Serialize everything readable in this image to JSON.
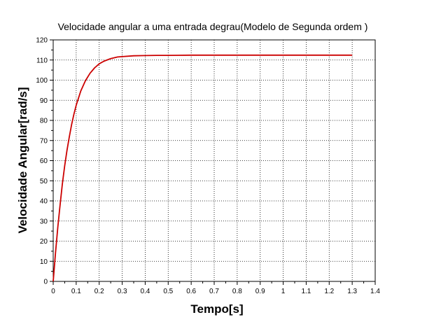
{
  "chart_data": {
    "type": "line",
    "title": "Velocidade angular a uma entrada degrau(Modelo de Segunda ordem )",
    "xlabel": "Tempo[s]",
    "ylabel": "Velocidade Angular[rad/s]",
    "xlim": [
      0,
      1.4
    ],
    "ylim": [
      0,
      120
    ],
    "x_ticks": [
      "0",
      "0.1",
      "0.2",
      "0.3",
      "0.4",
      "0.5",
      "0.6",
      "0.7",
      "0.8",
      "0.9",
      "1",
      "1.1",
      "1.2",
      "1.3",
      "1.4"
    ],
    "y_ticks": [
      "0",
      "10",
      "20",
      "30",
      "40",
      "50",
      "60",
      "70",
      "80",
      "90",
      "100",
      "110",
      "120"
    ],
    "grid": true,
    "legend": "none",
    "series": [
      {
        "color": "#cc0000",
        "x": [
          0,
          0.01,
          0.02,
          0.03,
          0.04,
          0.05,
          0.06,
          0.07,
          0.08,
          0.09,
          0.1,
          0.12,
          0.14,
          0.16,
          0.18,
          0.2,
          0.22,
          0.25,
          0.28,
          0.3,
          0.35,
          0.4,
          0.45,
          0.5,
          0.6,
          0.7,
          0.8,
          0.9,
          1.0,
          1.1,
          1.2,
          1.3
        ],
        "values": [
          0,
          14.2,
          27.0,
          38.2,
          48.5,
          57.4,
          65.1,
          71.8,
          77.9,
          83.1,
          87.6,
          94.6,
          99.7,
          103.4,
          106.1,
          108.1,
          109.4,
          110.7,
          111.5,
          111.7,
          112.1,
          112.2,
          112.3,
          112.3,
          112.4,
          112.4,
          112.4,
          112.4,
          112.4,
          112.4,
          112.4,
          112.4
        ]
      }
    ]
  }
}
